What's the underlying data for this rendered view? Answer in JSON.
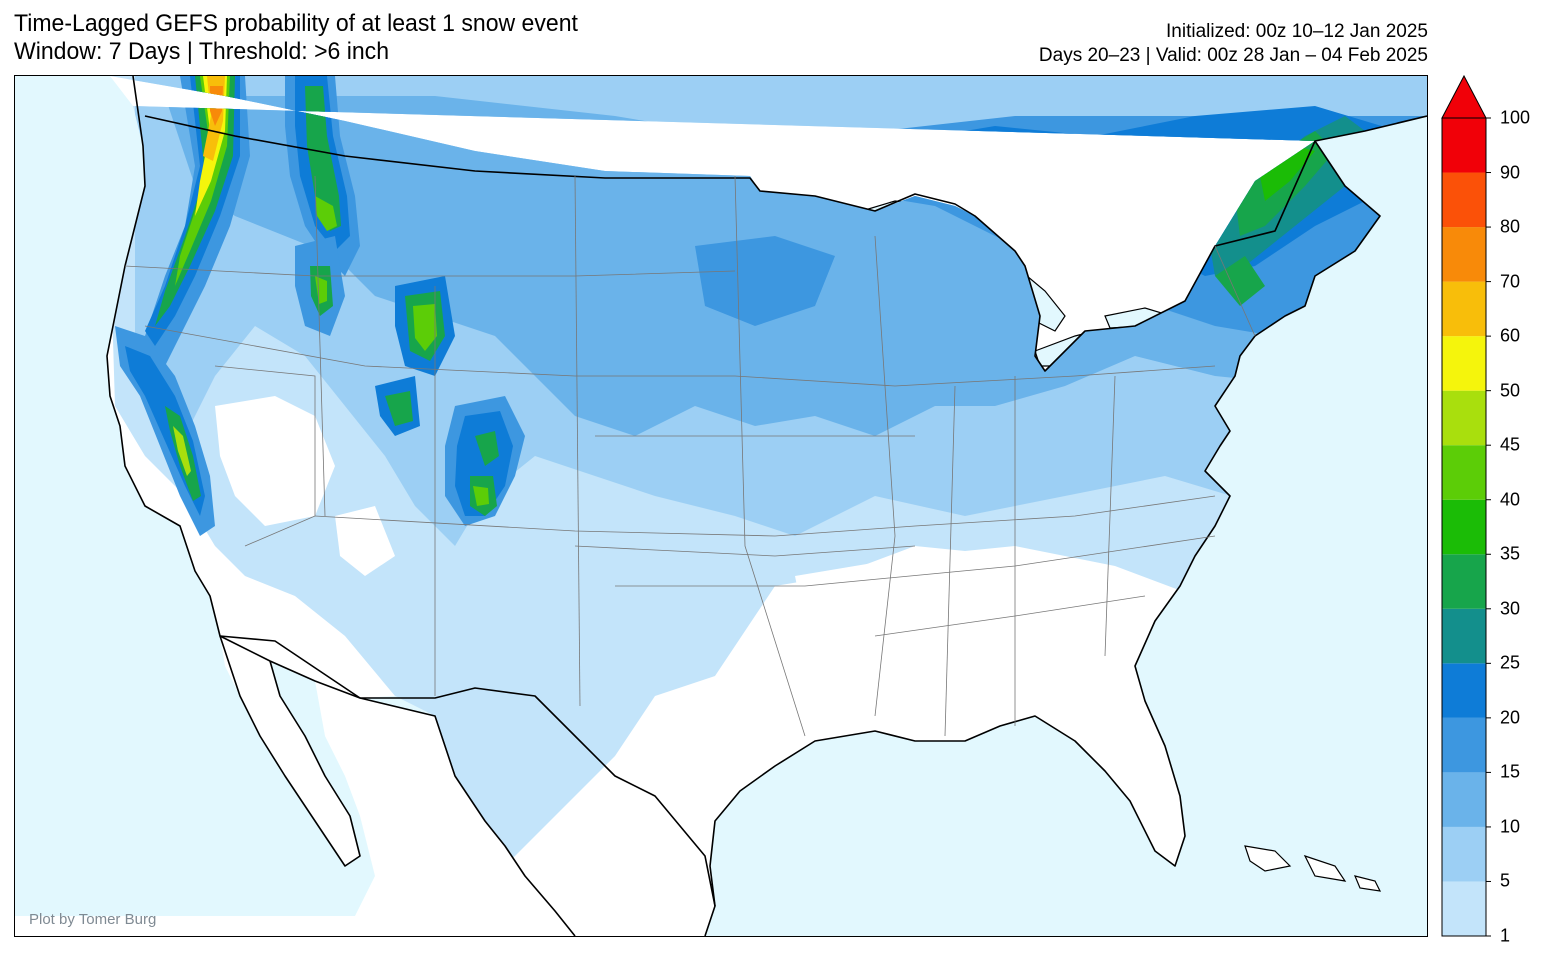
{
  "title": {
    "line1": "Time-Lagged GEFS probability of at least 1 snow event",
    "line2": "Window: 7 Days | Threshold: >6 inch"
  },
  "meta": {
    "initialized": "Initialized: 00z 10–12 Jan 2025",
    "valid": "Days 20–23 | Valid: 00z 28 Jan – 04 Feb 2025"
  },
  "credit": "Plot by Tomer Burg",
  "colors": {
    "ocean": "#e2f8fe",
    "land": "#ffffff",
    "coast": "#000000",
    "state_lines": "#777777"
  },
  "colorbar": {
    "levels": [
      1,
      5,
      10,
      15,
      20,
      25,
      30,
      35,
      40,
      45,
      50,
      60,
      70,
      80,
      90,
      100
    ],
    "colors": [
      "#c3e4fa",
      "#9ccff4",
      "#6ab3ea",
      "#3d97e0",
      "#0e7cd7",
      "#138f8c",
      "#17a54b",
      "#1bbc06",
      "#5ccd07",
      "#a9df0d",
      "#f5f50c",
      "#f8be0a",
      "#f88a09",
      "#fb5108",
      "#f10008"
    ],
    "extend_color": "#f10008"
  },
  "map_data": {
    "extent": "Continental United States",
    "variable": "Probability of snow > 6 inch (%)",
    "regions": [
      {
        "area": "Cascades WA",
        "max_probability": 70
      },
      {
        "area": "Sierra Nevada",
        "max_probability": 45
      },
      {
        "area": "N Rockies ID/MT",
        "max_probability": 45
      },
      {
        "area": "Wyoming ranges",
        "max_probability": 40
      },
      {
        "area": "Colorado Rockies",
        "max_probability": 35
      },
      {
        "area": "Quebec / New England",
        "max_probability": 35
      },
      {
        "area": "Upper Midwest",
        "max_probability": 20
      }
    ]
  }
}
